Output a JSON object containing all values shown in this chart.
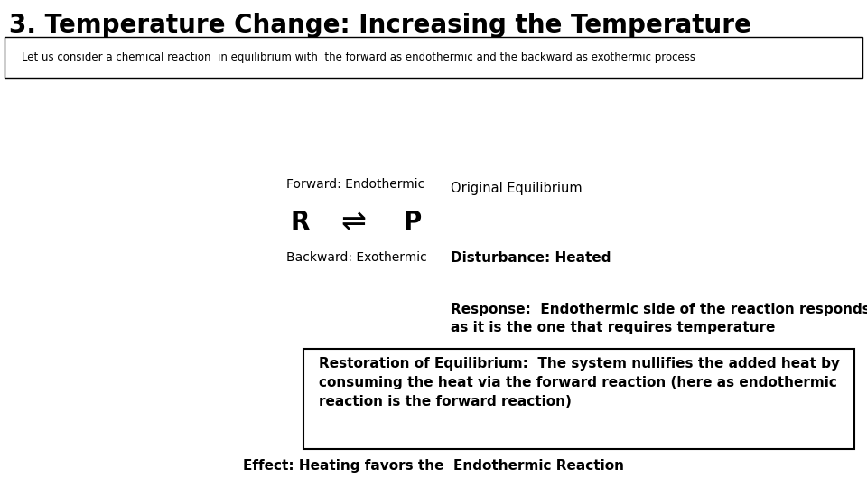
{
  "title": "3. Temperature Change: Increasing the Temperature",
  "subtitle": "Let us consider a chemical reaction  in equilibrium with  the forward as endothermic and the backward as exothermic process",
  "forward_label": "Forward: Endothermic",
  "backward_label": "Backward: Exothermic",
  "original_eq": "Original Equilibrium",
  "disturbance": "Disturbance: Heated",
  "response": "Response:  Endothermic side of the reaction responds\nas it is the one that requires temperature",
  "restoration": "Restoration of Equilibrium:  The system nullifies the added heat by\nconsuming the heat via the forward reaction (here as endothermic\nreaction is the forward reaction)",
  "effect": "Effect: Heating favors the  Endothermic Reaction",
  "bg_color": "#ffffff",
  "text_color": "#000000",
  "title_fontsize": 20,
  "subtitle_fontsize": 8.5,
  "body_fontsize": 10.5,
  "bold_fontsize": 11,
  "reaction_fontsize": 20,
  "label_fontsize": 10
}
